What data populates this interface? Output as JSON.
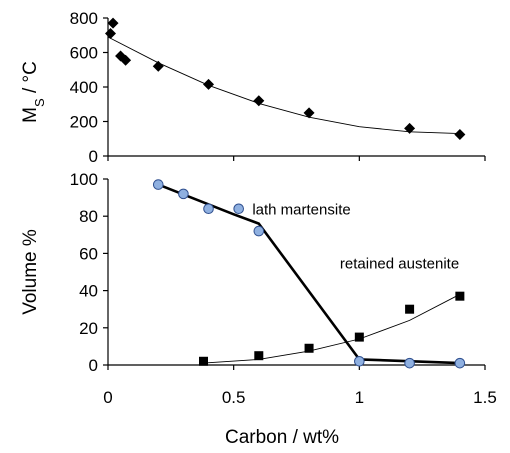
{
  "chart_data": [
    {
      "type": "scatter",
      "title": "",
      "ylabel_main": "M",
      "ylabel_sub": "S",
      "ylabel_rest": " / °C",
      "xlim": [
        0,
        1.5
      ],
      "ylim": [
        0,
        800
      ],
      "yticks": [
        "0",
        "200",
        "400",
        "600",
        "800"
      ],
      "grid": false,
      "series": [
        {
          "marker": "diamond",
          "color": "#000000",
          "points": [
            [
              0.02,
              770
            ],
            [
              0.01,
              710
            ],
            [
              0.05,
              580
            ],
            [
              0.07,
              555
            ],
            [
              0.2,
              520
            ],
            [
              0.4,
              415
            ],
            [
              0.6,
              320
            ],
            [
              0.8,
              250
            ],
            [
              1.2,
              160
            ],
            [
              1.4,
              125
            ]
          ],
          "fit": [
            [
              0,
              690
            ],
            [
              0.2,
              540
            ],
            [
              0.4,
              410
            ],
            [
              0.6,
              305
            ],
            [
              0.8,
              225
            ],
            [
              1.0,
              170
            ],
            [
              1.2,
              140
            ],
            [
              1.4,
              130
            ]
          ]
        }
      ]
    },
    {
      "type": "line",
      "ylabel": "Volume %",
      "xlabel": "Carbon / wt%",
      "xlim": [
        0,
        1.5
      ],
      "ylim": [
        0,
        100
      ],
      "xticks": [
        "0",
        "0.5",
        "1",
        "1.5"
      ],
      "yticks": [
        "0",
        "20",
        "40",
        "60",
        "80",
        "100"
      ],
      "grid": false,
      "annotations": [
        {
          "text": "lath martensite",
          "x": 0.77,
          "y": 81
        },
        {
          "text": "retained austenite",
          "x": 1.16,
          "y": 52
        }
      ],
      "series": [
        {
          "marker": "circle",
          "color": "#8fb0e0",
          "points": [
            [
              0.2,
              97
            ],
            [
              0.3,
              92
            ],
            [
              0.4,
              84
            ],
            [
              0.52,
              84
            ],
            [
              0.6,
              72
            ],
            [
              1.0,
              2
            ],
            [
              1.2,
              1
            ],
            [
              1.4,
              1
            ]
          ],
          "line": [
            [
              0.2,
              97
            ],
            [
              0.5,
              81
            ],
            [
              0.6,
              76
            ],
            [
              1.0,
              3
            ],
            [
              1.4,
              1
            ]
          ]
        },
        {
          "marker": "square",
          "color": "#000000",
          "points": [
            [
              0.38,
              2
            ],
            [
              0.6,
              5
            ],
            [
              0.8,
              9
            ],
            [
              1.0,
              15
            ],
            [
              1.2,
              30
            ],
            [
              1.4,
              37
            ]
          ],
          "fit": [
            [
              0.38,
              1
            ],
            [
              0.6,
              3
            ],
            [
              0.8,
              7.5
            ],
            [
              1.0,
              14
            ],
            [
              1.2,
              24
            ],
            [
              1.4,
              38
            ]
          ]
        }
      ]
    }
  ]
}
